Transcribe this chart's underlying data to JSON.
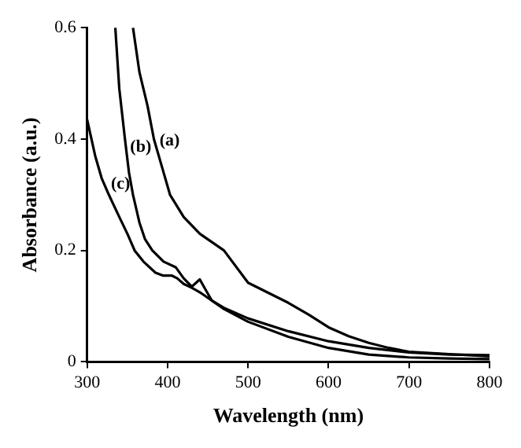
{
  "chart_data": {
    "type": "line",
    "xlabel": "Wavelength (nm)",
    "ylabel": "Absorbance (a.u.)",
    "xlim": [
      300,
      800
    ],
    "ylim": [
      0,
      0.6
    ],
    "xticks": [
      300,
      400,
      500,
      600,
      700,
      800
    ],
    "yticks": [
      0,
      0.2,
      0.4,
      0.6
    ],
    "grid": false,
    "legend": false,
    "marker": "none",
    "series": [
      {
        "name": "(a)",
        "color": "#000000",
        "x": [
          357,
          365,
          375,
          383,
          393,
          403,
          420,
          440,
          470,
          500,
          525,
          550,
          575,
          600,
          625,
          650,
          675,
          700,
          750,
          800
        ],
        "values": [
          0.6,
          0.52,
          0.46,
          0.4,
          0.35,
          0.3,
          0.26,
          0.23,
          0.2,
          0.142,
          0.124,
          0.106,
          0.085,
          0.062,
          0.046,
          0.034,
          0.025,
          0.018,
          0.014,
          0.01
        ]
      },
      {
        "name": "(b)",
        "color": "#000000",
        "x": [
          335,
          340,
          347,
          352,
          357,
          365,
          372,
          381,
          395,
          410,
          420,
          430,
          440,
          447,
          455,
          470,
          500,
          550,
          600,
          650,
          700,
          750,
          800
        ],
        "values": [
          0.6,
          0.49,
          0.4,
          0.34,
          0.3,
          0.25,
          0.22,
          0.2,
          0.18,
          0.17,
          0.15,
          0.135,
          0.148,
          0.13,
          0.11,
          0.095,
          0.072,
          0.045,
          0.025,
          0.013,
          0.008,
          0.006,
          0.005
        ]
      },
      {
        "name": "(c)",
        "color": "#000000",
        "x": [
          300,
          310,
          318,
          327,
          340,
          350,
          359,
          370,
          385,
          394,
          405,
          412,
          420,
          430,
          440,
          455,
          470,
          500,
          550,
          600,
          650,
          700,
          750,
          800
        ],
        "values": [
          0.435,
          0.37,
          0.33,
          0.3,
          0.26,
          0.23,
          0.2,
          0.18,
          0.16,
          0.155,
          0.155,
          0.15,
          0.14,
          0.133,
          0.125,
          0.11,
          0.097,
          0.078,
          0.055,
          0.037,
          0.025,
          0.017,
          0.013,
          0.012
        ]
      }
    ]
  }
}
